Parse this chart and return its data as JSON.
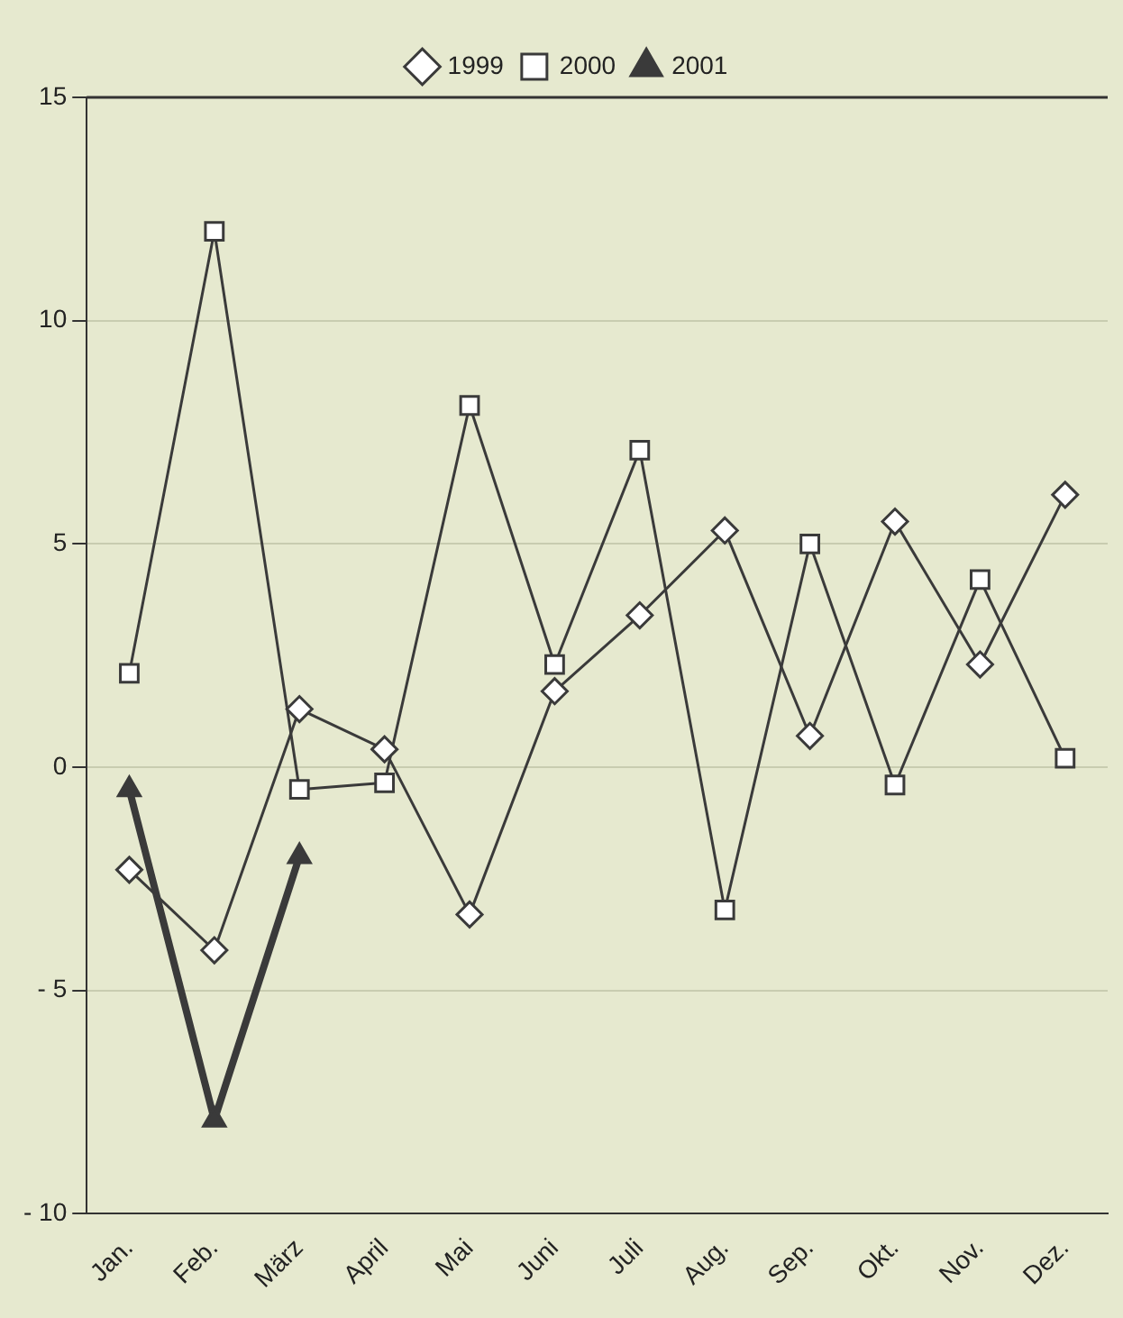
{
  "chart_data": {
    "type": "line",
    "categories": [
      "Jan.",
      "Feb.",
      "März",
      "April",
      "Mai",
      "Juni",
      "Juli",
      "Aug.",
      "Sep.",
      "Okt.",
      "Nov.",
      "Dez."
    ],
    "series": [
      {
        "name": "1999",
        "color": "#3a3a3a",
        "marker": "diamond",
        "values": [
          -2.3,
          -4.1,
          1.3,
          0.4,
          -3.3,
          1.7,
          3.4,
          5.3,
          0.7,
          5.5,
          2.3,
          6.1
        ]
      },
      {
        "name": "2000",
        "color": "#3a3a3a",
        "marker": "square",
        "values": [
          2.1,
          12.0,
          -0.5,
          -0.35,
          8.1,
          2.3,
          7.1,
          -3.2,
          5.0,
          -0.4,
          4.2,
          0.2
        ]
      },
      {
        "name": "2001",
        "color": "#3a3a3a",
        "marker": "triangle",
        "values": [
          -0.5,
          -7.9,
          -2.0,
          null,
          null,
          null,
          null,
          null,
          null,
          null,
          null,
          null
        ]
      }
    ],
    "ylim": [
      -10,
      15
    ],
    "yticks": [
      {
        "value": -10,
        "label": "- 10"
      },
      {
        "value": -5,
        "label": "- 5"
      },
      0,
      5,
      10,
      15
    ],
    "grid": "y",
    "legend": "top"
  }
}
